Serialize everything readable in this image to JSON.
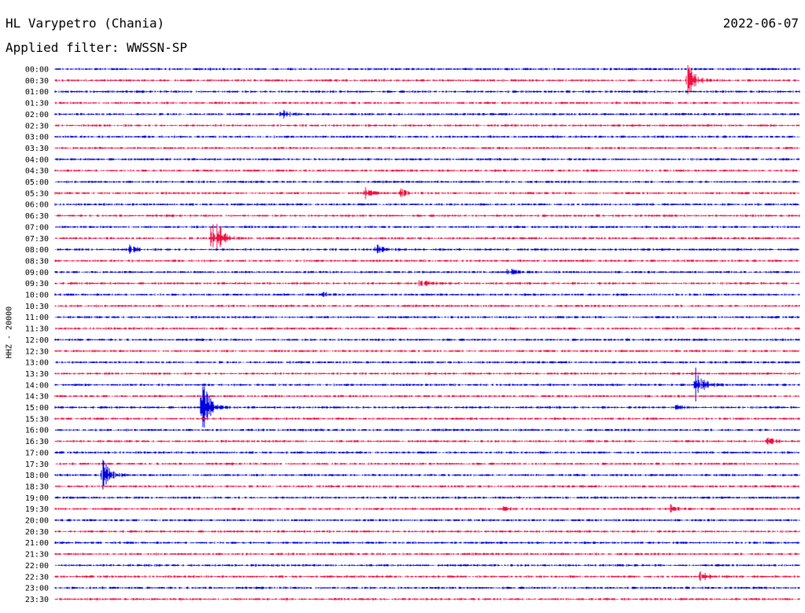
{
  "header": {
    "station": "HL Varypetro (Chania)",
    "date": "2022-06-07",
    "filter": "Applied filter: WWSSN-SP"
  },
  "channel_label": "HHZ - 20000",
  "colors": {
    "trace_a": "#0000dd",
    "trace_b": "#ee1144",
    "text": "#000000"
  },
  "chart_data": {
    "type": "line",
    "subtype": "helicorder",
    "title": "HL Varypetro (Chania)",
    "date": "2022-06-07",
    "filter": "WWSSN-SP",
    "ylabel": "HHZ - 20000",
    "row_minutes": 30,
    "row_labels": [
      "00:00",
      "00:30",
      "01:00",
      "01:30",
      "02:00",
      "02:30",
      "03:00",
      "03:30",
      "04:00",
      "04:30",
      "05:00",
      "05:30",
      "06:00",
      "06:30",
      "07:00",
      "07:30",
      "08:00",
      "08:30",
      "09:00",
      "09:30",
      "10:00",
      "10:30",
      "11:00",
      "11:30",
      "12:00",
      "12:30",
      "13:00",
      "13:30",
      "14:00",
      "14:30",
      "15:00",
      "15:30",
      "16:00",
      "16:30",
      "17:00",
      "17:30",
      "18:00",
      "18:30",
      "19:00",
      "19:30",
      "20:00",
      "20:30",
      "21:00",
      "21:30",
      "22:00",
      "22:30",
      "23:00",
      "23:30"
    ],
    "grid": false,
    "events": [
      {
        "row": "00:30",
        "minute": 25.5,
        "amplitude": 30
      },
      {
        "row": "02:00",
        "minute": 9.1,
        "amplitude": 7
      },
      {
        "row": "05:30",
        "minute": 12.5,
        "amplitude": 7
      },
      {
        "row": "05:30",
        "minute": 13.9,
        "amplitude": 6
      },
      {
        "row": "07:30",
        "minute": 6.3,
        "amplitude": 58
      },
      {
        "row": "08:00",
        "minute": 3.0,
        "amplitude": 6
      },
      {
        "row": "08:00",
        "minute": 12.9,
        "amplitude": 8
      },
      {
        "row": "09:00",
        "minute": 18.2,
        "amplitude": 8
      },
      {
        "row": "09:30",
        "minute": 14.7,
        "amplitude": 9
      },
      {
        "row": "10:00",
        "minute": 10.8,
        "amplitude": 4
      },
      {
        "row": "14:00",
        "minute": 25.8,
        "amplitude": 27
      },
      {
        "row": "15:00",
        "minute": 5.9,
        "amplitude": 46
      },
      {
        "row": "15:00",
        "minute": 25.0,
        "amplitude": 4
      },
      {
        "row": "16:30",
        "minute": 28.7,
        "amplitude": 6
      },
      {
        "row": "18:00",
        "minute": 1.9,
        "amplitude": 24
      },
      {
        "row": "19:30",
        "minute": 18.0,
        "amplitude": 4
      },
      {
        "row": "19:30",
        "minute": 24.8,
        "amplitude": 5
      },
      {
        "row": "22:30",
        "minute": 26.0,
        "amplitude": 12
      }
    ]
  }
}
